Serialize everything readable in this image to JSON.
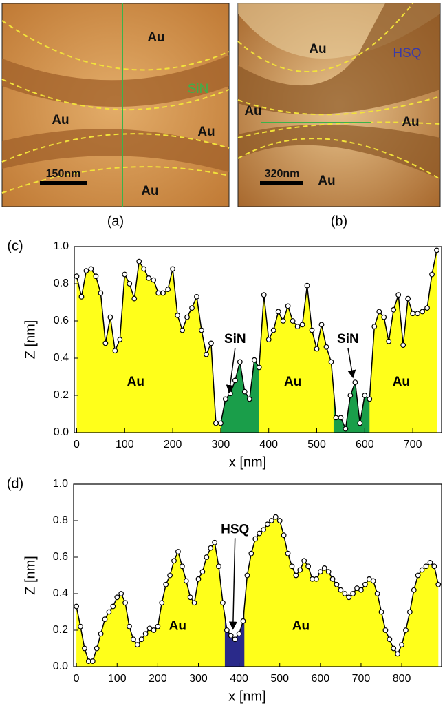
{
  "images": [
    {
      "caption": "(a)",
      "labels": [
        "Au",
        "SiN",
        "Au",
        "Au",
        "Au"
      ],
      "scale": "150nm"
    },
    {
      "caption": "(b)",
      "labels": [
        "Au",
        "HSQ",
        "Au",
        "Au",
        "Au"
      ],
      "scale": "320nm"
    }
  ],
  "chart_data": [
    {
      "type": "area",
      "label": "(c)",
      "xlabel": "x [nm]",
      "ylabel": "Z [nm]",
      "x": [
        0,
        10,
        20,
        30,
        40,
        50,
        60,
        70,
        80,
        90,
        100,
        110,
        120,
        130,
        140,
        150,
        160,
        170,
        180,
        190,
        200,
        210,
        220,
        230,
        240,
        250,
        260,
        270,
        280,
        290,
        300,
        310,
        320,
        330,
        340,
        350,
        360,
        370,
        380,
        390,
        400,
        410,
        420,
        430,
        440,
        450,
        460,
        470,
        480,
        490,
        500,
        510,
        520,
        530,
        540,
        550,
        560,
        570,
        580,
        590,
        600,
        610,
        620,
        630,
        640,
        650,
        660,
        670,
        680,
        690,
        700,
        710,
        720,
        730,
        740,
        750
      ],
      "values": [
        0.84,
        0.73,
        0.87,
        0.88,
        0.84,
        0.75,
        0.48,
        0.62,
        0.44,
        0.5,
        0.85,
        0.8,
        0.72,
        0.92,
        0.88,
        0.83,
        0.82,
        0.75,
        0.75,
        0.77,
        0.88,
        0.63,
        0.55,
        0.62,
        0.67,
        0.73,
        0.55,
        0.42,
        0.48,
        0.05,
        0.05,
        0.18,
        0.21,
        0.28,
        0.38,
        0.22,
        0.18,
        0.39,
        0.35,
        0.74,
        0.5,
        0.55,
        0.65,
        0.6,
        0.68,
        0.6,
        0.57,
        0.58,
        0.79,
        0.55,
        0.45,
        0.58,
        0.46,
        0.38,
        0.08,
        0.08,
        0.02,
        0.2,
        0.27,
        0.05,
        0.2,
        0.18,
        0.57,
        0.65,
        0.62,
        0.49,
        0.66,
        0.74,
        0.47,
        0.72,
        0.64,
        0.64,
        0.65,
        0.67,
        0.85,
        0.98
      ],
      "fill_color": "#ffff1a",
      "line_color": "#000000",
      "highlights": [
        {
          "from": 300,
          "to": 380,
          "color": "#1a9e4a"
        },
        {
          "from": 535,
          "to": 610,
          "color": "#1a9e4a"
        }
      ],
      "annotations": [
        "Au",
        "Au",
        "Au",
        "SiN",
        "SiN"
      ],
      "xlim": [
        -5,
        760
      ],
      "xticks": [
        0,
        100,
        200,
        300,
        400,
        500,
        600,
        700
      ],
      "ylim": [
        0,
        1
      ],
      "yticks": [
        {
          "value": 0,
          "label": "0.0"
        },
        0.2,
        0.4,
        0.6,
        0.8,
        {
          "value": 1,
          "label": "1.0"
        }
      ]
    },
    {
      "type": "area",
      "label": "(d)",
      "xlabel": "x [nm]",
      "ylabel": "Z [nm]",
      "x": [
        0,
        10,
        20,
        30,
        40,
        50,
        60,
        70,
        80,
        90,
        100,
        110,
        120,
        130,
        140,
        150,
        160,
        170,
        180,
        190,
        200,
        210,
        220,
        230,
        240,
        250,
        260,
        270,
        280,
        290,
        300,
        310,
        320,
        330,
        340,
        350,
        360,
        370,
        380,
        390,
        400,
        410,
        420,
        430,
        440,
        450,
        460,
        470,
        480,
        490,
        500,
        510,
        520,
        530,
        540,
        550,
        560,
        570,
        580,
        590,
        600,
        610,
        620,
        630,
        640,
        650,
        660,
        670,
        680,
        690,
        700,
        710,
        720,
        730,
        740,
        750,
        760,
        770,
        780,
        790,
        800,
        810,
        820,
        830,
        840,
        850,
        860,
        870,
        880,
        890
      ],
      "values": [
        0.33,
        0.22,
        0.1,
        0.03,
        0.03,
        0.1,
        0.18,
        0.26,
        0.3,
        0.33,
        0.38,
        0.4,
        0.35,
        0.22,
        0.15,
        0.12,
        0.15,
        0.18,
        0.21,
        0.2,
        0.22,
        0.35,
        0.45,
        0.5,
        0.58,
        0.63,
        0.55,
        0.47,
        0.38,
        0.35,
        0.48,
        0.52,
        0.6,
        0.65,
        0.68,
        0.55,
        0.35,
        0.2,
        0.17,
        0.15,
        0.18,
        0.25,
        0.5,
        0.62,
        0.7,
        0.73,
        0.75,
        0.78,
        0.8,
        0.82,
        0.8,
        0.72,
        0.62,
        0.55,
        0.5,
        0.53,
        0.58,
        0.55,
        0.48,
        0.48,
        0.52,
        0.54,
        0.52,
        0.48,
        0.45,
        0.42,
        0.4,
        0.38,
        0.4,
        0.43,
        0.42,
        0.45,
        0.48,
        0.47,
        0.4,
        0.3,
        0.2,
        0.15,
        0.1,
        0.07,
        0.12,
        0.2,
        0.3,
        0.42,
        0.5,
        0.53,
        0.55,
        0.57,
        0.55,
        0.45
      ],
      "fill_color": "#ffff1a",
      "line_color": "#000000",
      "highlights": [
        {
          "from": 365,
          "to": 413,
          "color": "#2a2a8a"
        }
      ],
      "annotations": [
        "Au",
        "Au",
        "HSQ"
      ],
      "xlim": [
        -7,
        898
      ],
      "xticks": [
        0,
        100,
        200,
        300,
        400,
        500,
        600,
        700,
        800
      ],
      "ylim": [
        0,
        1
      ],
      "yticks": [
        {
          "value": 0,
          "label": "0.0"
        },
        0.2,
        0.4,
        0.6,
        0.8,
        {
          "value": 1,
          "label": "1.0"
        }
      ]
    }
  ]
}
